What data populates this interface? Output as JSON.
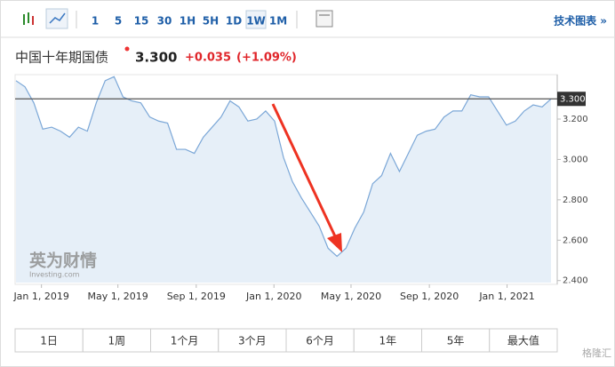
{
  "toolbar": {
    "intervals": [
      "1",
      "5",
      "15",
      "30",
      "1H",
      "5H",
      "1D",
      "1W",
      "1M"
    ],
    "active": "1W",
    "tech_chart": "技术图表 »"
  },
  "header": {
    "name": "中国十年期国债",
    "change": "+0.035",
    "change_pct": "(+1.09%)"
  },
  "watermark": {
    "brand": "英为财情",
    "site": "Investing.com",
    "corner": "格隆汇"
  },
  "ranges": [
    "1日",
    "1周",
    "1个月",
    "3个月",
    "6个月",
    "1年",
    "5年",
    "最大值"
  ],
  "chart_data": {
    "type": "area",
    "x": [
      "2018-11-22",
      "2018-12-06",
      "2018-12-20",
      "2019-01-03",
      "2019-01-17",
      "2019-01-31",
      "2019-02-14",
      "2019-02-28",
      "2019-03-14",
      "2019-03-28",
      "2019-04-11",
      "2019-04-25",
      "2019-05-09",
      "2019-05-23",
      "2019-06-06",
      "2019-06-20",
      "2019-07-04",
      "2019-07-18",
      "2019-08-01",
      "2019-08-15",
      "2019-08-29",
      "2019-09-12",
      "2019-09-26",
      "2019-10-10",
      "2019-10-24",
      "2019-11-07",
      "2019-11-21",
      "2019-12-05",
      "2019-12-19",
      "2020-01-02",
      "2020-01-16",
      "2020-01-30",
      "2020-02-13",
      "2020-02-27",
      "2020-03-12",
      "2020-03-26",
      "2020-04-09",
      "2020-04-23",
      "2020-05-07",
      "2020-05-21",
      "2020-06-04",
      "2020-06-18",
      "2020-07-02",
      "2020-07-16",
      "2020-07-30",
      "2020-08-13",
      "2020-08-27",
      "2020-09-10",
      "2020-09-24",
      "2020-10-08",
      "2020-10-22",
      "2020-11-05",
      "2020-11-19",
      "2020-12-03",
      "2020-12-17",
      "2020-12-31",
      "2021-01-14",
      "2021-01-28",
      "2021-02-11",
      "2021-02-25",
      "2021-03-11"
    ],
    "series": [
      {
        "name": "中国十年期国债",
        "color": "#7ba7d7",
        "values": [
          3.39,
          3.36,
          3.28,
          3.15,
          3.16,
          3.14,
          3.11,
          3.16,
          3.14,
          3.28,
          3.39,
          3.41,
          3.31,
          3.29,
          3.28,
          3.21,
          3.19,
          3.18,
          3.05,
          3.05,
          3.03,
          3.11,
          3.16,
          3.21,
          3.29,
          3.26,
          3.19,
          3.2,
          3.24,
          3.19,
          3.01,
          2.89,
          2.81,
          2.74,
          2.67,
          2.56,
          2.52,
          2.56,
          2.66,
          2.74,
          2.88,
          2.92,
          3.03,
          2.94,
          3.03,
          3.12,
          3.14,
          3.15,
          3.21,
          3.24,
          3.24,
          3.32,
          3.31,
          3.31,
          3.24,
          3.17,
          3.19,
          3.24,
          3.27,
          3.26,
          3.3
        ]
      }
    ],
    "current": {
      "value": 3.3,
      "label": "3.300"
    },
    "xlim": [
      "2018-11-22",
      "2021-03-11"
    ],
    "xticks": [
      {
        "value": "2019-01-01",
        "label": "Jan 1, 2019"
      },
      {
        "value": "2019-05-01",
        "label": "May 1, 2019"
      },
      {
        "value": "2019-09-01",
        "label": "Sep 1, 2019"
      },
      {
        "value": "2020-01-01",
        "label": "Jan 1, 2020"
      },
      {
        "value": "2020-05-01",
        "label": "May 1, 2020"
      },
      {
        "value": "2020-09-01",
        "label": "Sep 1, 2020"
      },
      {
        "value": "2021-01-01",
        "label": "Jan 1, 2021"
      }
    ],
    "ylim": [
      2.39,
      3.42
    ],
    "yticks": [
      {
        "value": 2.4,
        "label": "2.400"
      },
      {
        "value": 2.6,
        "label": "2.600"
      },
      {
        "value": 2.8,
        "label": "2.800"
      },
      {
        "value": 3.0,
        "label": "3.000"
      },
      {
        "value": 3.2,
        "label": "3.200"
      }
    ]
  }
}
